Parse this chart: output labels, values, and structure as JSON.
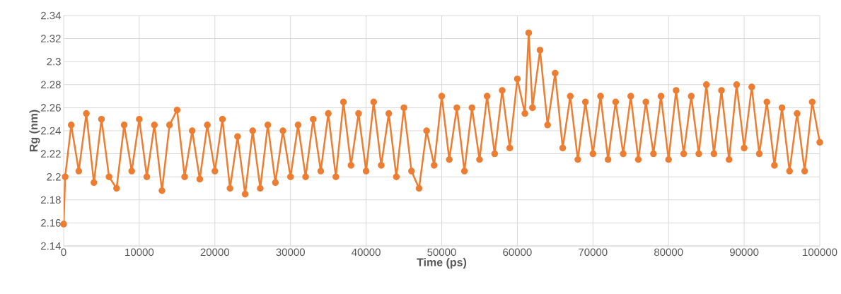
{
  "chart_data": {
    "type": "line",
    "xlabel": "Time (ps)",
    "ylabel": "Rg (nm)",
    "x": [
      0,
      200,
      1000,
      2000,
      3000,
      4000,
      5000,
      6000,
      7000,
      8000,
      9000,
      10000,
      11000,
      12000,
      13000,
      14000,
      15000,
      16000,
      17000,
      18000,
      19000,
      20000,
      21000,
      22000,
      23000,
      24000,
      25000,
      26000,
      27000,
      28000,
      29000,
      30000,
      31000,
      32000,
      33000,
      34000,
      35000,
      36000,
      37000,
      38000,
      39000,
      40000,
      41000,
      42000,
      43000,
      44000,
      45000,
      46000,
      47000,
      48000,
      49000,
      50000,
      51000,
      52000,
      53000,
      54000,
      55000,
      56000,
      57000,
      58000,
      59000,
      60000,
      61000,
      61500,
      62000,
      63000,
      64000,
      65000,
      66000,
      67000,
      68000,
      69000,
      70000,
      71000,
      72000,
      73000,
      74000,
      75000,
      76000,
      77000,
      78000,
      79000,
      80000,
      81000,
      82000,
      83000,
      84000,
      85000,
      86000,
      87000,
      88000,
      89000,
      90000,
      91000,
      92000,
      93000,
      94000,
      95000,
      96000,
      97000,
      98000,
      99000,
      100000
    ],
    "series": [
      {
        "color": "#ed7d31",
        "values": [
          2.159,
          2.2,
          2.245,
          2.205,
          2.255,
          2.195,
          2.25,
          2.2,
          2.19,
          2.245,
          2.205,
          2.25,
          2.2,
          2.245,
          2.188,
          2.245,
          2.258,
          2.2,
          2.24,
          2.198,
          2.245,
          2.205,
          2.25,
          2.19,
          2.235,
          2.185,
          2.24,
          2.19,
          2.245,
          2.195,
          2.24,
          2.2,
          2.245,
          2.2,
          2.25,
          2.205,
          2.255,
          2.2,
          2.265,
          2.21,
          2.255,
          2.205,
          2.265,
          2.21,
          2.255,
          2.2,
          2.26,
          2.205,
          2.19,
          2.24,
          2.21,
          2.27,
          2.215,
          2.26,
          2.205,
          2.26,
          2.215,
          2.27,
          2.22,
          2.275,
          2.225,
          2.285,
          2.255,
          2.325,
          2.26,
          2.31,
          2.245,
          2.29,
          2.225,
          2.27,
          2.215,
          2.265,
          2.22,
          2.27,
          2.215,
          2.265,
          2.22,
          2.27,
          2.215,
          2.265,
          2.22,
          2.27,
          2.215,
          2.275,
          2.22,
          2.27,
          2.22,
          2.28,
          2.22,
          2.275,
          2.215,
          2.28,
          2.225,
          2.278,
          2.22,
          2.265,
          2.21,
          2.26,
          2.205,
          2.255,
          2.205,
          2.265,
          2.23
        ]
      }
    ],
    "xlim": [
      0,
      100000
    ],
    "xticks": [
      0,
      10000,
      20000,
      30000,
      40000,
      50000,
      60000,
      70000,
      80000,
      90000,
      100000
    ],
    "ylim": [
      2.14,
      2.34
    ],
    "yticks": [
      2.14,
      2.16,
      2.18,
      2.2,
      2.22,
      2.24,
      2.26,
      2.28,
      2.3,
      2.32,
      2.34
    ],
    "grid": true,
    "marker": "circle",
    "line_style": "solid"
  }
}
